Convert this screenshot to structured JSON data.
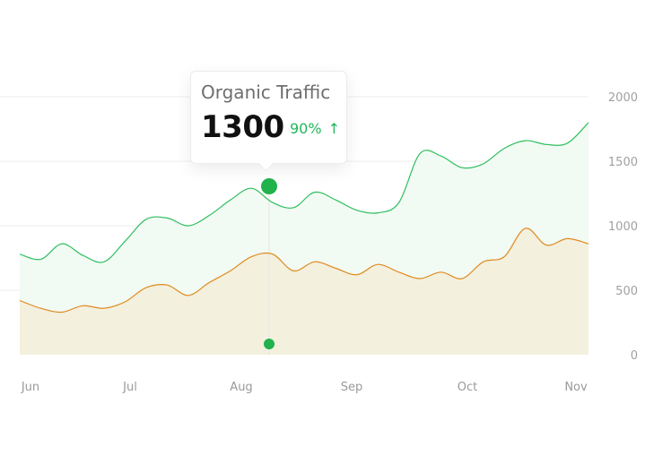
{
  "chart_data": {
    "type": "area",
    "x_tick_labels": [
      "Jun",
      "Jul",
      "Aug",
      "Sep",
      "Oct",
      "Nov"
    ],
    "y_tick_labels": [
      "0",
      "500",
      "1000",
      "1500",
      "2000"
    ],
    "ylim": [
      0,
      2000
    ],
    "grid": true,
    "series": [
      {
        "color": "#2fbf5f",
        "fill": "#f1faf3",
        "values": [
          780,
          740,
          860,
          770,
          720,
          880,
          1050,
          1060,
          1000,
          1080,
          1200,
          1290,
          1180,
          1140,
          1260,
          1200,
          1120,
          1100,
          1180,
          1560,
          1540,
          1450,
          1480,
          1600,
          1660,
          1630,
          1640,
          1800
        ]
      },
      {
        "color": "#e08a1e",
        "fill": "#f3f0de",
        "values": [
          420,
          360,
          330,
          380,
          360,
          410,
          520,
          540,
          460,
          560,
          650,
          760,
          780,
          650,
          720,
          670,
          620,
          700,
          640,
          590,
          640,
          590,
          720,
          760,
          980,
          850,
          900,
          860
        ]
      }
    ]
  },
  "tooltip": {
    "title": "Organic Traffic",
    "value": "1300",
    "change": "90%",
    "arrow": "↑"
  },
  "colors": {
    "point": "#22b24c",
    "up": "#1fb85a"
  }
}
